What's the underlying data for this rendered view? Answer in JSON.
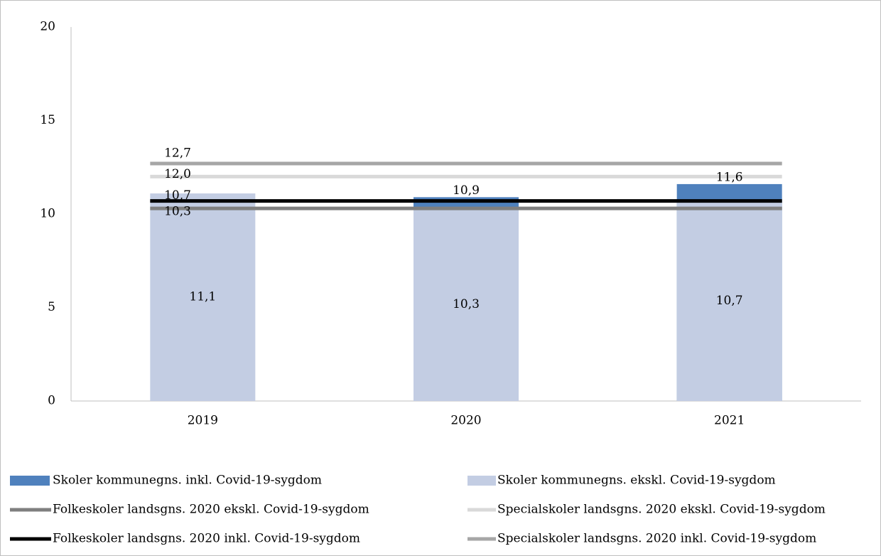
{
  "chart_data": {
    "type": "bar",
    "categories": [
      "2019",
      "2020",
      "2021"
    ],
    "ylim": [
      0,
      20
    ],
    "yticks": [
      0,
      5,
      10,
      15,
      20
    ],
    "series": [
      {
        "name": "Skoler kommunegns. inkl. Covid-19-sygdom",
        "type": "bar",
        "color": "#4f81bd",
        "values": [
          null,
          10.9,
          11.6
        ],
        "value_labels": [
          null,
          "10,9",
          "11,6"
        ]
      },
      {
        "name": "Skoler kommunegns. ekskl. Covid-19-sygdom",
        "type": "bar",
        "color": "#c3cde3",
        "values": [
          11.1,
          10.3,
          10.7
        ],
        "value_labels": [
          "11,1",
          "10,3",
          "10,7"
        ]
      },
      {
        "name": "Folkeskoler landsgns. 2020 ekskl. Covid-19-sygdom",
        "type": "line",
        "color": "#7f7f7f",
        "values": [
          10.3,
          10.3,
          10.3
        ],
        "value_labels": [
          "10,3",
          null,
          null
        ]
      },
      {
        "name": "Specialskoler landsgns. 2020 ekskl. Covid-19-sygdom",
        "type": "line",
        "color": "#d9d9d9",
        "values": [
          12.0,
          12.0,
          12.0
        ],
        "value_labels": [
          "12,0",
          null,
          null
        ]
      },
      {
        "name": "Folkeskoler landsgns. 2020 inkl. Covid-19-sygdom",
        "type": "line",
        "color": "#000000",
        "values": [
          10.7,
          10.7,
          10.7
        ],
        "value_labels": [
          "10,7",
          null,
          null
        ]
      },
      {
        "name": "Specialskoler landsgns. 2020 inkl. Covid-19-sygdom",
        "type": "line",
        "color": "#a6a6a6",
        "values": [
          12.7,
          12.7,
          12.7
        ],
        "value_labels": [
          "12,7",
          null,
          null
        ]
      }
    ]
  }
}
